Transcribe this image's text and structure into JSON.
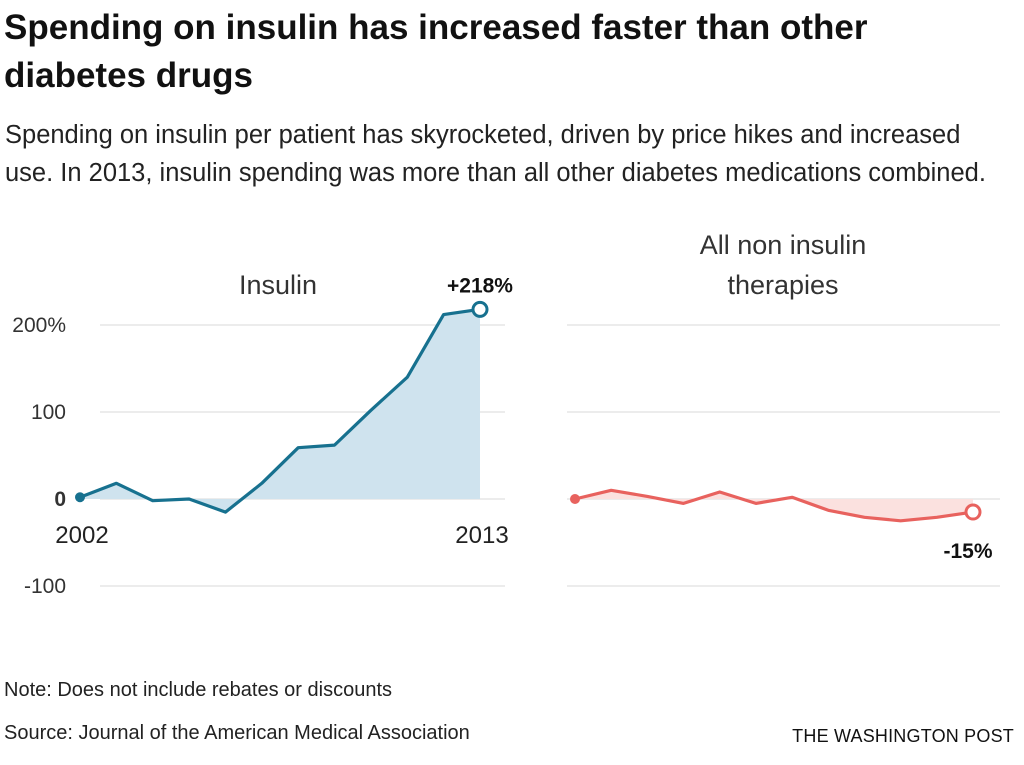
{
  "header": {
    "title": "Spending on insulin has increased faster than other diabetes drugs",
    "subtitle": "Spending on insulin per patient has skyrocketed, driven by price hikes and increased use. In 2013, insulin spending was more than all other diabetes medications combined."
  },
  "footer": {
    "note": "Note: Does not include rebates or discounts",
    "source": "Source: Journal of the American Medical Association",
    "credit": "THE WASHINGTON POST"
  },
  "colors": {
    "insulin_line": "#17718f",
    "insulin_fill": "#cfe3ee",
    "other_line": "#e8625e",
    "other_fill": "#fbe1df",
    "grid": "#d9d9d9"
  },
  "chart_data": {
    "type": "area",
    "ylim": [
      -110,
      220
    ],
    "y_ticks": [
      {
        "value": 200,
        "label": "200%"
      },
      {
        "value": 100,
        "label": "100"
      },
      {
        "value": 0,
        "label": "0"
      },
      {
        "value": -100,
        "label": "-100"
      }
    ],
    "x": [
      2002,
      2003,
      2004,
      2005,
      2006,
      2007,
      2008,
      2009,
      2010,
      2011,
      2012,
      2013
    ],
    "x_labels": [
      {
        "year": 2002,
        "label": "2002"
      },
      {
        "year": 2013,
        "label": "2013"
      }
    ],
    "panels": [
      {
        "name": "Insulin",
        "title": "Insulin",
        "end_label": "+218%",
        "values": [
          2,
          18,
          -2,
          0,
          -15,
          18,
          59,
          62,
          102,
          140,
          212,
          218
        ]
      },
      {
        "name": "All non insulin therapies",
        "title": "All non insulin therapies",
        "end_label": "-15%",
        "values": [
          0,
          10,
          3,
          -5,
          8,
          -5,
          2,
          -13,
          -21,
          -25,
          -21,
          -15
        ]
      }
    ]
  }
}
